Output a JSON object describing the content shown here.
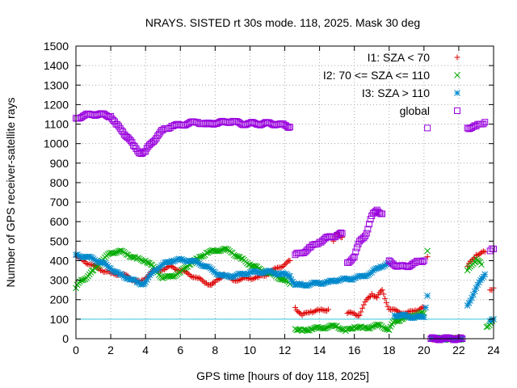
{
  "chart_data": {
    "type": "scatter",
    "title": "NRAYS. SISTED rt 30s mode. 118, 2025. Mask 30 deg",
    "xlabel": "GPS time [hours of doy 118, 2025]",
    "ylabel": "Number of GPS receiver-satellite rays",
    "xlim": [
      0,
      24
    ],
    "ylim": [
      0,
      1500
    ],
    "xticks": [
      "0",
      "2",
      "4",
      "6",
      "8",
      "10",
      "12",
      "14",
      "16",
      "18",
      "20",
      "22",
      "24"
    ],
    "yticks": [
      "0",
      "100",
      "200",
      "300",
      "400",
      "500",
      "600",
      "700",
      "800",
      "900",
      "1000",
      "1100",
      "1200",
      "1300",
      "1400",
      "1500"
    ],
    "grid": true,
    "legend_position": "top-right",
    "reference_line": {
      "y": 100,
      "color": "#33ccdd"
    },
    "series": [
      {
        "name": "I1: SZA < 70",
        "marker": "plus",
        "color": "#dd0000",
        "points": [
          [
            0.0,
            420
          ],
          [
            0.5,
            395
          ],
          [
            1.0,
            375
          ],
          [
            1.5,
            350
          ],
          [
            2.0,
            335
          ],
          [
            2.5,
            330
          ],
          [
            3.0,
            320
          ],
          [
            3.3,
            300
          ],
          [
            3.7,
            290
          ],
          [
            4.0,
            310
          ],
          [
            4.3,
            340
          ],
          [
            4.7,
            350
          ],
          [
            5.0,
            355
          ],
          [
            5.5,
            370
          ],
          [
            6.0,
            350
          ],
          [
            6.5,
            330
          ],
          [
            7.0,
            310
          ],
          [
            7.5,
            285
          ],
          [
            7.8,
            275
          ],
          [
            8.0,
            290
          ],
          [
            8.5,
            330
          ],
          [
            9.0,
            300
          ],
          [
            9.5,
            305
          ],
          [
            10.0,
            310
          ],
          [
            10.5,
            315
          ],
          [
            11.0,
            330
          ],
          [
            11.5,
            360
          ],
          [
            12.0,
            380
          ],
          [
            12.3,
            400
          ],
          [
            12.6,
            160
          ],
          [
            13.0,
            120
          ],
          [
            13.5,
            140
          ],
          [
            14.0,
            145
          ],
          [
            14.5,
            150
          ],
          [
            14.8,
            500
          ],
          [
            15.0,
            540
          ],
          [
            15.3,
            520
          ],
          [
            15.6,
            130
          ],
          [
            16.0,
            130
          ],
          [
            16.3,
            120
          ],
          [
            16.7,
            200
          ],
          [
            17.0,
            230
          ],
          [
            17.3,
            210
          ],
          [
            17.6,
            250
          ],
          [
            18.0,
            150
          ],
          [
            18.5,
            140
          ],
          [
            19.0,
            130
          ],
          [
            19.5,
            145
          ],
          [
            20.0,
            160
          ],
          [
            20.2,
            420
          ],
          [
            20.4,
            0
          ],
          [
            21.0,
            0
          ],
          [
            21.6,
            0
          ],
          [
            22.2,
            0
          ],
          [
            22.5,
            370
          ],
          [
            23.0,
            430
          ],
          [
            23.5,
            445
          ],
          [
            23.8,
            250
          ],
          [
            24.0,
            260
          ]
        ]
      },
      {
        "name": "I2: 70 <= SZA <= 110",
        "marker": "cross",
        "color": "#00aa00",
        "points": [
          [
            0.0,
            260
          ],
          [
            0.3,
            300
          ],
          [
            0.7,
            320
          ],
          [
            1.0,
            350
          ],
          [
            1.5,
            400
          ],
          [
            2.0,
            440
          ],
          [
            2.5,
            450
          ],
          [
            3.0,
            430
          ],
          [
            3.5,
            410
          ],
          [
            4.0,
            400
          ],
          [
            4.3,
            380
          ],
          [
            4.7,
            340
          ],
          [
            5.0,
            310
          ],
          [
            5.5,
            320
          ],
          [
            6.0,
            340
          ],
          [
            6.5,
            380
          ],
          [
            7.0,
            410
          ],
          [
            7.5,
            440
          ],
          [
            8.0,
            450
          ],
          [
            8.5,
            460
          ],
          [
            9.0,
            440
          ],
          [
            9.5,
            410
          ],
          [
            10.0,
            380
          ],
          [
            10.5,
            360
          ],
          [
            11.0,
            340
          ],
          [
            11.5,
            320
          ],
          [
            12.0,
            300
          ],
          [
            12.3,
            280
          ],
          [
            12.6,
            50
          ],
          [
            13.0,
            40
          ],
          [
            13.5,
            50
          ],
          [
            14.0,
            55
          ],
          [
            14.5,
            60
          ],
          [
            15.0,
            65
          ],
          [
            15.5,
            40
          ],
          [
            16.0,
            60
          ],
          [
            16.5,
            55
          ],
          [
            17.0,
            60
          ],
          [
            17.5,
            70
          ],
          [
            18.0,
            45
          ],
          [
            18.3,
            90
          ],
          [
            18.7,
            100
          ],
          [
            19.0,
            110
          ],
          [
            19.5,
            120
          ],
          [
            20.0,
            130
          ],
          [
            20.2,
            450
          ],
          [
            20.4,
            0
          ],
          [
            21.0,
            0
          ],
          [
            21.6,
            0
          ],
          [
            22.2,
            0
          ],
          [
            22.5,
            350
          ],
          [
            23.0,
            410
          ],
          [
            23.3,
            380
          ],
          [
            23.6,
            60
          ],
          [
            24.0,
            100
          ]
        ]
      },
      {
        "name": "I3: SZA > 110",
        "marker": "star",
        "color": "#0088cc",
        "points": [
          [
            0.0,
            430
          ],
          [
            0.5,
            420
          ],
          [
            1.0,
            410
          ],
          [
            1.5,
            390
          ],
          [
            2.0,
            360
          ],
          [
            2.5,
            330
          ],
          [
            3.0,
            310
          ],
          [
            3.5,
            290
          ],
          [
            3.8,
            280
          ],
          [
            4.0,
            290
          ],
          [
            4.5,
            350
          ],
          [
            5.0,
            380
          ],
          [
            5.5,
            400
          ],
          [
            6.0,
            405
          ],
          [
            6.5,
            400
          ],
          [
            7.0,
            390
          ],
          [
            7.5,
            370
          ],
          [
            8.0,
            340
          ],
          [
            8.5,
            320
          ],
          [
            9.0,
            320
          ],
          [
            9.5,
            330
          ],
          [
            10.0,
            340
          ],
          [
            10.5,
            340
          ],
          [
            11.0,
            345
          ],
          [
            11.5,
            335
          ],
          [
            12.0,
            330
          ],
          [
            12.3,
            320
          ],
          [
            12.6,
            275
          ],
          [
            13.0,
            275
          ],
          [
            13.5,
            280
          ],
          [
            14.0,
            285
          ],
          [
            14.5,
            290
          ],
          [
            15.0,
            300
          ],
          [
            15.5,
            305
          ],
          [
            16.0,
            310
          ],
          [
            16.5,
            320
          ],
          [
            17.0,
            340
          ],
          [
            17.5,
            370
          ],
          [
            18.0,
            385
          ],
          [
            18.3,
            120
          ],
          [
            18.7,
            120
          ],
          [
            19.0,
            115
          ],
          [
            19.5,
            110
          ],
          [
            20.0,
            110
          ],
          [
            20.2,
            220
          ],
          [
            20.4,
            0
          ],
          [
            21.0,
            0
          ],
          [
            21.6,
            0
          ],
          [
            22.2,
            0
          ],
          [
            22.5,
            170
          ],
          [
            23.0,
            260
          ],
          [
            23.5,
            330
          ],
          [
            23.8,
            90
          ],
          [
            24.0,
            100
          ]
        ]
      },
      {
        "name": "global",
        "marker": "square",
        "color": "#9900dd",
        "points": [
          [
            0.0,
            1130
          ],
          [
            0.5,
            1145
          ],
          [
            1.0,
            1150
          ],
          [
            1.5,
            1150
          ],
          [
            2.0,
            1140
          ],
          [
            2.3,
            1100
          ],
          [
            2.7,
            1060
          ],
          [
            3.0,
            1030
          ],
          [
            3.3,
            990
          ],
          [
            3.7,
            950
          ],
          [
            4.0,
            960
          ],
          [
            4.3,
            1000
          ],
          [
            4.7,
            1040
          ],
          [
            5.0,
            1070
          ],
          [
            5.5,
            1090
          ],
          [
            6.0,
            1095
          ],
          [
            6.5,
            1105
          ],
          [
            7.0,
            1110
          ],
          [
            7.5,
            1100
          ],
          [
            8.0,
            1105
          ],
          [
            8.5,
            1110
          ],
          [
            9.0,
            1115
          ],
          [
            9.5,
            1100
          ],
          [
            10.0,
            1105
          ],
          [
            10.5,
            1100
          ],
          [
            11.0,
            1105
          ],
          [
            11.5,
            1100
          ],
          [
            12.0,
            1095
          ],
          [
            12.3,
            1085
          ],
          [
            12.6,
            430
          ],
          [
            13.0,
            440
          ],
          [
            13.5,
            470
          ],
          [
            14.0,
            495
          ],
          [
            14.5,
            520
          ],
          [
            15.0,
            530
          ],
          [
            15.3,
            540
          ],
          [
            15.6,
            390
          ],
          [
            16.0,
            420
          ],
          [
            16.3,
            500
          ],
          [
            16.7,
            540
          ],
          [
            17.0,
            630
          ],
          [
            17.3,
            660
          ],
          [
            17.6,
            640
          ],
          [
            18.0,
            400
          ],
          [
            18.5,
            370
          ],
          [
            19.0,
            370
          ],
          [
            19.5,
            390
          ],
          [
            20.0,
            400
          ],
          [
            20.2,
            1080
          ],
          [
            20.4,
            0
          ],
          [
            21.0,
            0
          ],
          [
            21.6,
            0
          ],
          [
            22.2,
            0
          ],
          [
            22.5,
            1080
          ],
          [
            23.0,
            1090
          ],
          [
            23.5,
            1110
          ],
          [
            23.8,
            450
          ],
          [
            24.0,
            460
          ]
        ]
      }
    ]
  }
}
